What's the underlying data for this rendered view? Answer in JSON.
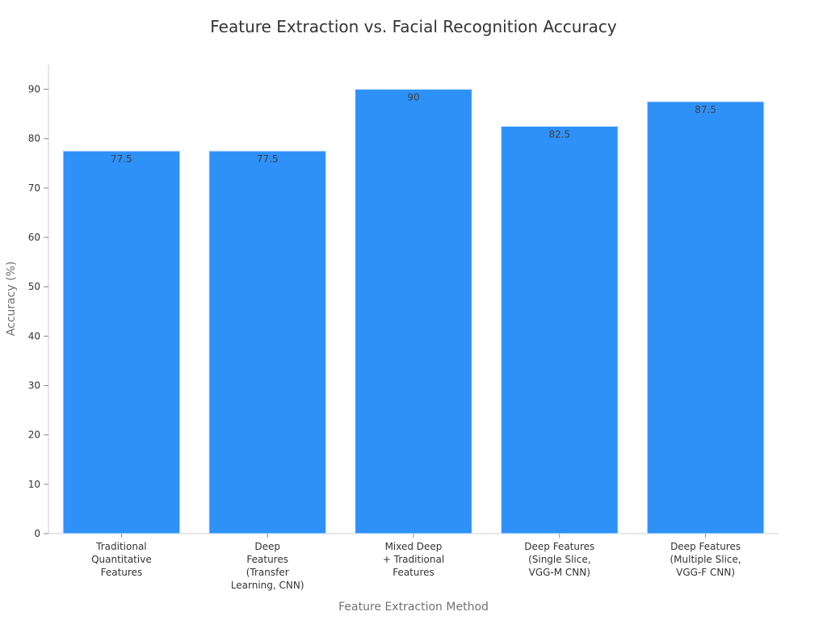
{
  "chart_data": {
    "type": "bar",
    "title": "Feature Extraction vs. Facial Recognition Accuracy",
    "xlabel": "Feature Extraction Method",
    "ylabel": "Accuracy (%)",
    "categories": [
      [
        "Traditional",
        "Quantitative",
        "Features"
      ],
      [
        "Deep",
        "Features",
        "(Transfer",
        "Learning, CNN)"
      ],
      [
        "Mixed Deep",
        "+ Traditional",
        "Features"
      ],
      [
        "Deep Features",
        "(Single Slice,",
        "VGG-M CNN)"
      ],
      [
        "Deep Features",
        "(Multiple Slice,",
        "VGG-F CNN)"
      ]
    ],
    "values": [
      77.5,
      77.5,
      90,
      82.5,
      87.5
    ],
    "data_labels": [
      "77.5",
      "77.5",
      "90",
      "82.5",
      "87.5"
    ],
    "ylim": [
      0,
      95
    ],
    "yticks": [
      0,
      10,
      20,
      30,
      40,
      50,
      60,
      70,
      80,
      90
    ],
    "grid": false,
    "legend": "none",
    "colors": {
      "bar": "#2e91f8",
      "bar_edge": "#d6e8ff"
    }
  }
}
